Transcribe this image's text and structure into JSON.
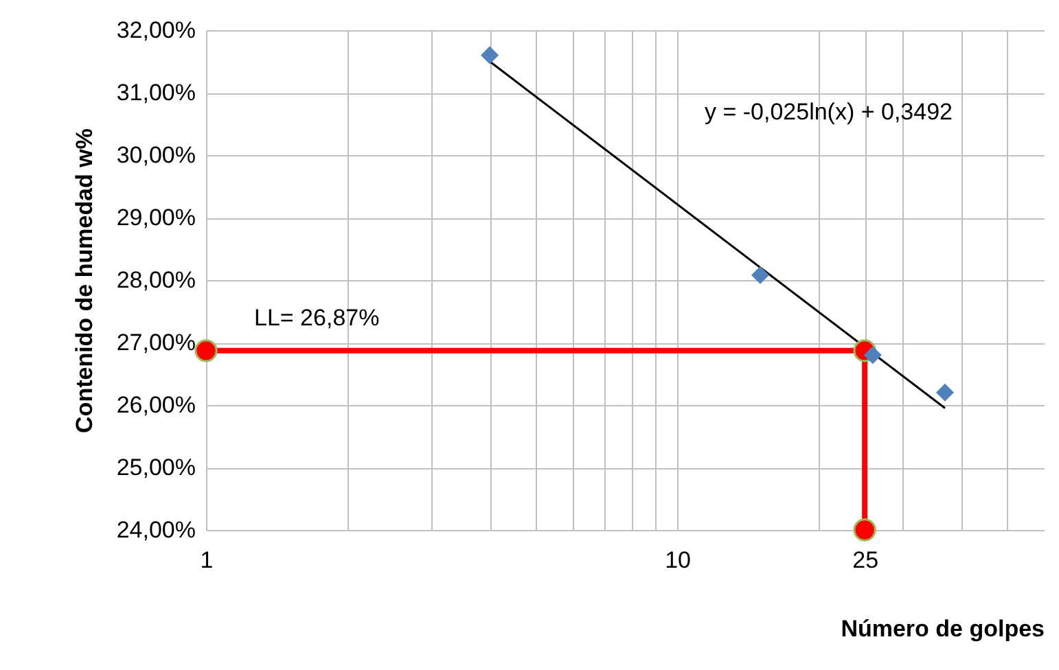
{
  "chart_data": {
    "type": "scatter",
    "xlabel": "Número de golpes",
    "ylabel": "Contenido de humedad w%",
    "log": "x",
    "grid": true,
    "xlim": [
      1,
      60
    ],
    "xticks": [
      1,
      {
        "value": 2,
        "label": null
      },
      {
        "value": 3,
        "label": null
      },
      {
        "value": 4,
        "label": null
      },
      {
        "value": 5,
        "label": null
      },
      {
        "value": 6,
        "label": null
      },
      {
        "value": 7,
        "label": null
      },
      {
        "value": 8,
        "label": null
      },
      {
        "value": 9,
        "label": null
      },
      10,
      {
        "value": 20,
        "label": null
      },
      25,
      {
        "value": 30,
        "label": null
      },
      {
        "value": 40,
        "label": null
      },
      {
        "value": 50,
        "label": null
      }
    ],
    "ylim": [
      24,
      32
    ],
    "yticks": [
      {
        "value": 24,
        "label": "24,00%"
      },
      {
        "value": 25,
        "label": "25,00%"
      },
      {
        "value": 26,
        "label": "26,00%"
      },
      {
        "value": 27,
        "label": "27,00%"
      },
      {
        "value": 28,
        "label": "28,00%"
      },
      {
        "value": 29,
        "label": "29,00%"
      },
      {
        "value": 30,
        "label": "30,00%"
      },
      {
        "value": 31,
        "label": "31,00%"
      },
      {
        "value": 32,
        "label": "32,00%"
      }
    ],
    "series": [
      {
        "type": "line",
        "color": "#000000",
        "marker": "none",
        "x": [
          4,
          37
        ],
        "values": [
          31.5,
          25.95
        ]
      },
      {
        "type": "line",
        "color": "#ff0000",
        "marker": "circle",
        "x": [
          1,
          25,
          25
        ],
        "values": [
          26.87,
          26.87,
          24
        ]
      },
      {
        "color": "#4f81bd",
        "marker": "diamond",
        "x": [
          4,
          15,
          26,
          37
        ],
        "values": [
          31.6,
          28.08,
          26.8,
          26.2
        ]
      }
    ],
    "annotations": [
      "LL= 26,87%",
      "y = -0,025ln(x) + 0,3492"
    ]
  }
}
